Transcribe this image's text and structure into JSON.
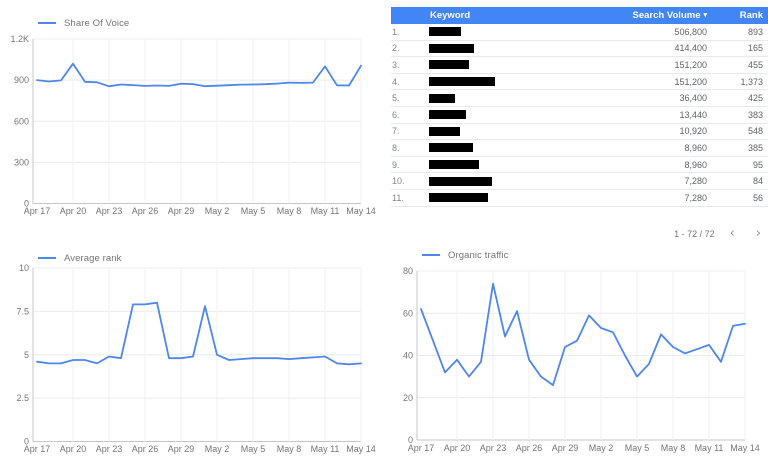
{
  "colors": {
    "accent": "#4e86ec",
    "table_header_bg": "#4285f4",
    "grid": "#ebecee",
    "axis": "#c4c7ca",
    "axis_text": "#757575",
    "redaction": "#000000"
  },
  "chart_data": [
    {
      "id": "share_of_voice",
      "type": "line",
      "legend": "Share Of Voice",
      "legend_position": "top-left",
      "grid": true,
      "line_color": "#4e86ec",
      "x": [
        "Apr 17",
        "Apr 18",
        "Apr 19",
        "Apr 20",
        "Apr 21",
        "Apr 22",
        "Apr 23",
        "Apr 24",
        "Apr 25",
        "Apr 26",
        "Apr 27",
        "Apr 28",
        "Apr 29",
        "Apr 30",
        "May 1",
        "May 2",
        "May 3",
        "May 4",
        "May 5",
        "May 6",
        "May 7",
        "May 8",
        "May 9",
        "May 10",
        "May 11",
        "May 12",
        "May 13",
        "May 14"
      ],
      "values": [
        900,
        890,
        898,
        1020,
        888,
        884,
        855,
        868,
        864,
        858,
        861,
        858,
        874,
        871,
        856,
        859,
        863,
        867,
        868,
        870,
        875,
        882,
        880,
        882,
        1000,
        862,
        861,
        1005
      ],
      "ylim": [
        0,
        1200
      ],
      "yticks": [
        0,
        300,
        600,
        900,
        1200
      ],
      "ytick_labels": [
        "0",
        "300",
        "600",
        "900",
        "1.2K"
      ],
      "xtick_indices": [
        0,
        3,
        6,
        9,
        12,
        15,
        18,
        21,
        24,
        27
      ],
      "xtick_labels": [
        "Apr 17",
        "Apr 20",
        "Apr 23",
        "Apr 26",
        "Apr 29",
        "May 2",
        "May 5",
        "May 8",
        "May 11",
        "May 14"
      ]
    },
    {
      "id": "average_rank",
      "type": "line",
      "legend": "Average rank",
      "legend_position": "top-left",
      "grid": true,
      "line_color": "#4e86ec",
      "x": [
        "Apr 17",
        "Apr 18",
        "Apr 19",
        "Apr 20",
        "Apr 21",
        "Apr 22",
        "Apr 23",
        "Apr 24",
        "Apr 25",
        "Apr 26",
        "Apr 27",
        "Apr 28",
        "Apr 29",
        "Apr 30",
        "May 1",
        "May 2",
        "May 3",
        "May 4",
        "May 5",
        "May 6",
        "May 7",
        "May 8",
        "May 9",
        "May 10",
        "May 11",
        "May 12",
        "May 13",
        "May 14"
      ],
      "values": [
        4.6,
        4.5,
        4.5,
        4.7,
        4.7,
        4.5,
        4.9,
        4.8,
        7.9,
        7.9,
        8.0,
        4.8,
        4.8,
        4.9,
        7.8,
        5.0,
        4.7,
        4.75,
        4.8,
        4.8,
        4.8,
        4.75,
        4.8,
        4.85,
        4.9,
        4.5,
        4.45,
        4.5
      ],
      "ylim": [
        0,
        10
      ],
      "yticks": [
        0,
        2.5,
        5,
        7.5,
        10
      ],
      "ytick_labels": [
        "0",
        "2.5",
        "5",
        "7.5",
        "10"
      ],
      "xtick_indices": [
        0,
        3,
        6,
        9,
        12,
        15,
        18,
        21,
        24,
        27
      ],
      "xtick_labels": [
        "Apr 17",
        "Apr 20",
        "Apr 23",
        "Apr 26",
        "Apr 29",
        "May 2",
        "May 5",
        "May 8",
        "May 11",
        "May 14"
      ]
    },
    {
      "id": "organic_traffic",
      "type": "line",
      "legend": "Organic traffic",
      "legend_position": "top-left",
      "grid": true,
      "line_color": "#4e86ec",
      "x": [
        "Apr 17",
        "Apr 18",
        "Apr 19",
        "Apr 20",
        "Apr 21",
        "Apr 22",
        "Apr 23",
        "Apr 24",
        "Apr 25",
        "Apr 26",
        "Apr 27",
        "Apr 28",
        "Apr 29",
        "Apr 30",
        "May 1",
        "May 2",
        "May 3",
        "May 4",
        "May 5",
        "May 6",
        "May 7",
        "May 8",
        "May 9",
        "May 10",
        "May 11",
        "May 12",
        "May 13",
        "May 14"
      ],
      "values": [
        62,
        47,
        32,
        38,
        30,
        37,
        74,
        49,
        61,
        38,
        30,
        26,
        44,
        47,
        59,
        53,
        51,
        40,
        30,
        36,
        50,
        44,
        41,
        43,
        45,
        37,
        54,
        55
      ],
      "ylim": [
        0,
        80
      ],
      "yticks": [
        0,
        20,
        40,
        60,
        80
      ],
      "ytick_labels": [
        "0",
        "20",
        "40",
        "60",
        "80"
      ],
      "xtick_indices": [
        0,
        3,
        6,
        9,
        12,
        15,
        18,
        21,
        24,
        27
      ],
      "xtick_labels": [
        "Apr 17",
        "Apr 20",
        "Apr 23",
        "Apr 26",
        "Apr 29",
        "May 2",
        "May 5",
        "May 8",
        "May 11",
        "May 14"
      ]
    }
  ],
  "table": {
    "columns": {
      "keyword": "Keyword",
      "search_volume": "Search Volume",
      "rank": "Rank"
    },
    "sort_column": "Search Volume",
    "sort_indicator": "▾",
    "rows": [
      {
        "index": "1.",
        "keyword_redacted": true,
        "redaction_width": 32,
        "search_volume": "506,800",
        "rank": "893"
      },
      {
        "index": "2.",
        "keyword_redacted": true,
        "redaction_width": 45,
        "search_volume": "414,400",
        "rank": "165"
      },
      {
        "index": "3.",
        "keyword_redacted": true,
        "redaction_width": 40,
        "search_volume": "151,200",
        "rank": "455"
      },
      {
        "index": "4.",
        "keyword_redacted": true,
        "redaction_width": 66,
        "search_volume": "151,200",
        "rank": "1,373"
      },
      {
        "index": "5.",
        "keyword_redacted": true,
        "redaction_width": 26,
        "search_volume": "36,400",
        "rank": "425"
      },
      {
        "index": "6.",
        "keyword_redacted": true,
        "redaction_width": 37,
        "search_volume": "13,440",
        "rank": "383"
      },
      {
        "index": "7.",
        "keyword_redacted": true,
        "redaction_width": 31,
        "search_volume": "10,920",
        "rank": "548"
      },
      {
        "index": "8.",
        "keyword_redacted": true,
        "redaction_width": 44,
        "search_volume": "8,960",
        "rank": "385"
      },
      {
        "index": "9.",
        "keyword_redacted": true,
        "redaction_width": 50,
        "search_volume": "8,960",
        "rank": "95"
      },
      {
        "index": "10.",
        "keyword_redacted": true,
        "redaction_width": 63,
        "search_volume": "7,280",
        "rank": "84"
      },
      {
        "index": "11.",
        "keyword_redacted": true,
        "redaction_width": 59,
        "search_volume": "7,280",
        "rank": "56"
      }
    ],
    "pagination": {
      "range_label": "1 - 72 / 72",
      "prev": "‹",
      "next": "›"
    }
  }
}
